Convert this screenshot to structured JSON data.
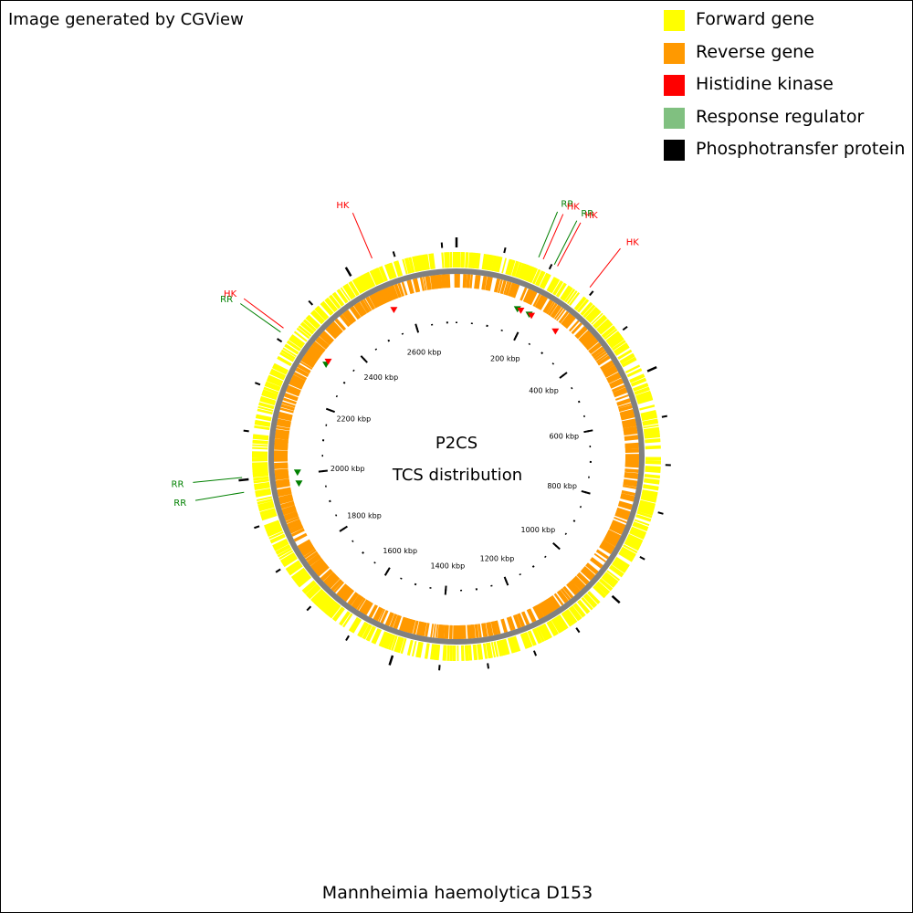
{
  "credit": "Image generated by CGView",
  "legend": [
    {
      "label": "Forward gene",
      "color": "#ffff00"
    },
    {
      "label": "Reverse gene",
      "color": "#ff9900"
    },
    {
      "label": "Histidine kinase",
      "color": "#ff0000"
    },
    {
      "label": "Response regulator",
      "color": "#80c080"
    },
    {
      "label": "Phosphotransfer protein",
      "color": "#000000"
    }
  ],
  "map": {
    "center_title": "P2CS",
    "center_subtitle": "TCS distribution",
    "backbone_color": "#808080",
    "genome_length_kbp": 2730,
    "ruler_ticks": [
      {
        "value": 200,
        "label": "200 kbp"
      },
      {
        "value": 400,
        "label": "400 kbp"
      },
      {
        "value": 600,
        "label": "600 kbp"
      },
      {
        "value": 800,
        "label": "800 kbp"
      },
      {
        "value": 1000,
        "label": "1000 kbp"
      },
      {
        "value": 1200,
        "label": "1200 kbp"
      },
      {
        "value": 1400,
        "label": "1400 kbp"
      },
      {
        "value": 1600,
        "label": "1600 kbp"
      },
      {
        "value": 1800,
        "label": "1800 kbp"
      },
      {
        "value": 2000,
        "label": "2000 kbp"
      },
      {
        "value": 2200,
        "label": "2200 kbp"
      },
      {
        "value": 2400,
        "label": "2400 kbp"
      },
      {
        "value": 2600,
        "label": "2600 kbp"
      }
    ],
    "features": [
      {
        "type": "RR",
        "label": "RR",
        "position_kbp": 170,
        "color": "#008000"
      },
      {
        "type": "HK",
        "label": "HK",
        "position_kbp": 180,
        "color": "#ff0000"
      },
      {
        "type": "RR",
        "label": "RR",
        "position_kbp": 205,
        "color": "#008000"
      },
      {
        "type": "HK",
        "label": "HK",
        "position_kbp": 212,
        "color": "#ff0000"
      },
      {
        "type": "HK",
        "label": "HK",
        "position_kbp": 290,
        "color": "#ff0000"
      },
      {
        "type": "RR",
        "label": "RR",
        "position_kbp": 2005,
        "color": "#008000"
      },
      {
        "type": "RR",
        "label": "RR",
        "position_kbp": 1975,
        "color": "#008000"
      },
      {
        "type": "RR",
        "label": "RR",
        "position_kbp": 2315,
        "color": "#008000"
      },
      {
        "type": "HK",
        "label": "HK",
        "position_kbp": 2325,
        "color": "#ff0000"
      },
      {
        "type": "HK",
        "label": "HK",
        "position_kbp": 2555,
        "color": "#ff0000"
      }
    ]
  },
  "organism": "Mannheimia haemolytica D153"
}
